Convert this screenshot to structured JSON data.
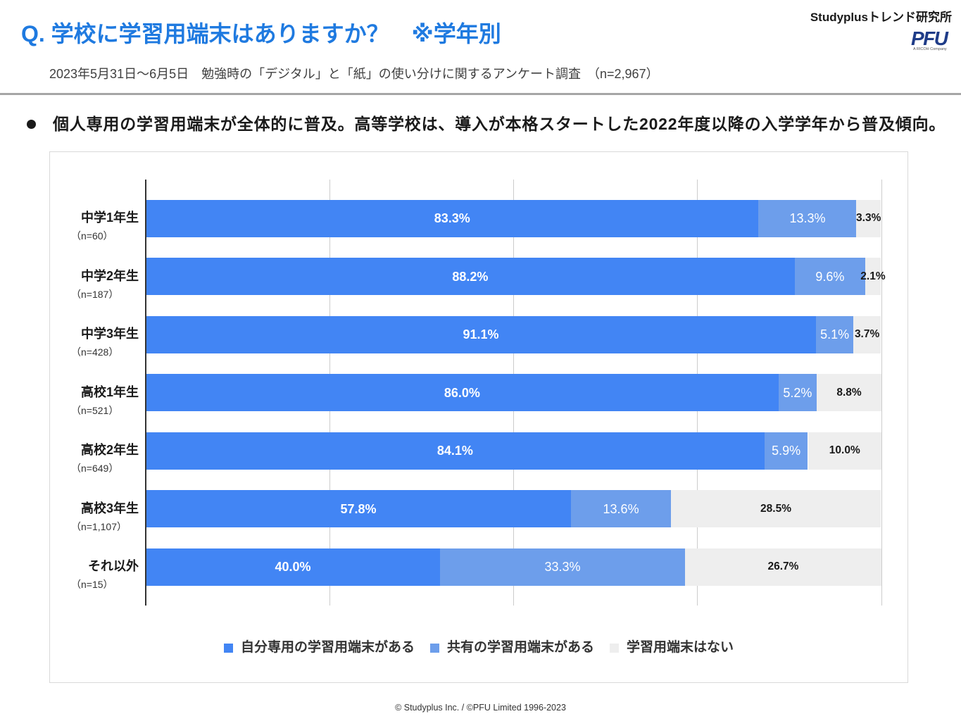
{
  "header": {
    "title": "Q. 学校に学習用端末はありますか？　※学年別",
    "subtitle": "2023年5月31日～6月5日　勉強時の「デジタル」と「紙」の使い分けに関するアンケート調査　（n=2,967）",
    "brand": "Studyplusトレンド研究所",
    "logo_text": "PFU",
    "logo_tagline": "A RICOH Company"
  },
  "summary": {
    "bullet_icon": "black-circle-bullet-icon",
    "text": "個人専用の学習用端末が全体的に普及。高等学校は、導入が本格スタートした2022年度以降の入学学年から普及傾向。"
  },
  "colors": {
    "title": "#1f7ae0",
    "logo": "#1f3c88",
    "divider": "#a6a6a6"
  },
  "chart_data": {
    "type": "bar",
    "horizontal": true,
    "stacked": true,
    "categories": [
      "中学1年生",
      "中学2年生",
      "中学3年生",
      "高校1年生",
      "高校2年生",
      "高校3年生",
      "それ以外"
    ],
    "category_notes": [
      "（n=60）",
      "（n=187）",
      "（n=428）",
      "（n=521）",
      "（n=649）",
      "（n=1,107）",
      "（n=15）"
    ],
    "series": [
      {
        "name": "自分専用の学習用端末がある",
        "color": "#4285f4",
        "label_color": "#ffffff",
        "values": [
          83.3,
          88.2,
          91.1,
          86.0,
          84.1,
          57.8,
          40.0
        ],
        "labels": [
          "83.3%",
          "88.2%",
          "91.1%",
          "86.0%",
          "84.1%",
          "57.8%",
          "40.0%"
        ]
      },
      {
        "name": "共有の学習用端末がある",
        "color": "#6d9eeb",
        "label_color": "#ffffff",
        "values": [
          13.3,
          9.6,
          5.1,
          5.2,
          5.9,
          13.6,
          33.3
        ],
        "labels": [
          "13.3%",
          "9.6%",
          "5.1%",
          "5.2%",
          "5.9%",
          "13.6%",
          "33.3%"
        ]
      },
      {
        "name": "学習用端末はない",
        "color": "#eeeeee",
        "label_color": "#1a1a1a",
        "values": [
          3.3,
          2.1,
          3.7,
          8.8,
          10.0,
          28.5,
          26.7
        ],
        "labels": [
          "3.3%",
          "2.1%",
          "3.7%",
          "8.8%",
          "10.0%",
          "28.5%",
          "26.7%"
        ]
      }
    ],
    "xlim": [
      0,
      100
    ],
    "grid": true,
    "grid_interval": 25,
    "legend_position": "bottom"
  },
  "footer": {
    "copyright": "© Studyplus Inc. / ©PFU Limited 1996-2023"
  }
}
